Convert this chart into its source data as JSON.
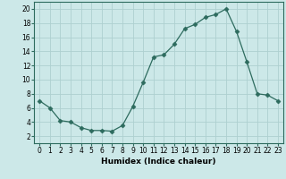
{
  "x": [
    0,
    1,
    2,
    3,
    4,
    5,
    6,
    7,
    8,
    9,
    10,
    11,
    12,
    13,
    14,
    15,
    16,
    17,
    18,
    19,
    20,
    21,
    22,
    23
  ],
  "y": [
    7.0,
    6.0,
    4.2,
    4.0,
    3.2,
    2.8,
    2.8,
    2.7,
    3.5,
    6.2,
    9.6,
    13.2,
    13.5,
    15.0,
    17.2,
    17.8,
    18.8,
    19.2,
    20.0,
    16.8,
    12.5,
    8.0,
    7.8,
    7.0
  ],
  "line_color": "#2d6b5e",
  "marker": "D",
  "marker_size": 2.5,
  "bg_color": "#cce8e8",
  "grid_color": "#aed0d0",
  "xlabel": "Humidex (Indice chaleur)",
  "xlim": [
    -0.5,
    23.5
  ],
  "ylim": [
    1,
    21
  ],
  "yticks": [
    2,
    4,
    6,
    8,
    10,
    12,
    14,
    16,
    18,
    20
  ],
  "xticks": [
    0,
    1,
    2,
    3,
    4,
    5,
    6,
    7,
    8,
    9,
    10,
    11,
    12,
    13,
    14,
    15,
    16,
    17,
    18,
    19,
    20,
    21,
    22,
    23
  ],
  "tick_label_fontsize": 5.5,
  "xlabel_fontsize": 6.5
}
